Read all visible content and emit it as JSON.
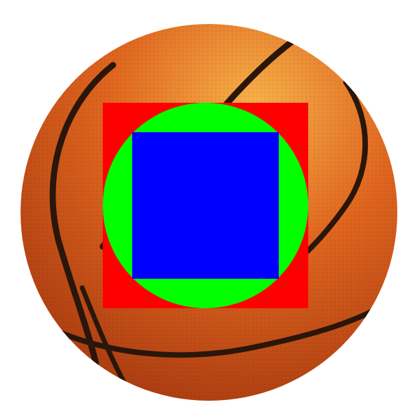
{
  "scene": {
    "background_color": "#ffffff",
    "ball": {
      "icon": "basketball",
      "base_color": "#e0661f",
      "highlight_color": "#f7b24a",
      "shadow_color": "#a83a10",
      "seam_color": "#2a160a"
    },
    "overlay": {
      "outer_square_color": "#ff0000",
      "circle_color": "#00ff00",
      "inner_square_color": "#0000ff"
    }
  }
}
